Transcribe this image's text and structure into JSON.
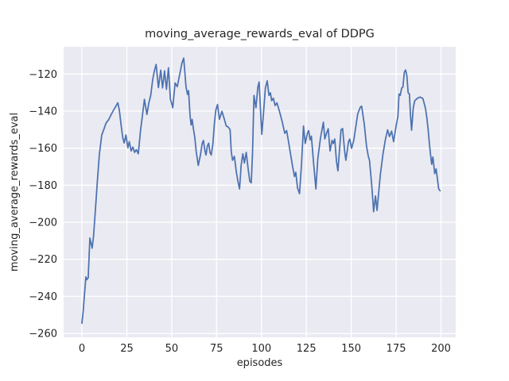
{
  "figure": {
    "title": "moving_average_rewards_eval of DDPG",
    "xlabel": "episodes",
    "ylabel": "moving_average_rewards_eval"
  },
  "chart_data": {
    "type": "line",
    "title": "moving_average_rewards_eval of DDPG",
    "xlabel": "episodes",
    "ylabel": "moving_average_rewards_eval",
    "xlim": [
      -10.2,
      208.2
    ],
    "ylim": [
      -262.1,
      -105.3
    ],
    "grid": true,
    "legend": false,
    "x_ticks": {
      "values": [
        0,
        25,
        50,
        75,
        100,
        125,
        150,
        175,
        200
      ],
      "labels": [
        "0",
        "25",
        "50",
        "75",
        "100",
        "125",
        "150",
        "175",
        "200"
      ]
    },
    "y_ticks": {
      "values": [
        -120,
        -140,
        -160,
        -180,
        -200,
        -220,
        -240,
        -260
      ],
      "labels": [
        "−120",
        "−140",
        "−160",
        "−180",
        "−200",
        "−220",
        "−240",
        "−260"
      ]
    },
    "style": {
      "plot_bg": "#EAEAF2",
      "grid_color": "#FFFFFF",
      "line_color": "#4C72B0",
      "text_color": "#262626",
      "line_width": 1.75
    },
    "series": [
      {
        "name": "moving_average_rewards_eval",
        "color": "#4C72B0",
        "points": [
          [
            0,
            -254.5
          ],
          [
            0.7,
            -248
          ],
          [
            1.5,
            -238
          ],
          [
            2.2,
            -229.5
          ],
          [
            2.7,
            -231
          ],
          [
            3.5,
            -230
          ],
          [
            4.4,
            -208.5
          ],
          [
            5.7,
            -214
          ],
          [
            6.5,
            -207
          ],
          [
            7.5,
            -193
          ],
          [
            8.6,
            -178
          ],
          [
            9.7,
            -163.5
          ],
          [
            11,
            -153
          ],
          [
            12.2,
            -149.8
          ],
          [
            13.4,
            -146.5
          ],
          [
            15,
            -144.4
          ],
          [
            16.2,
            -142
          ],
          [
            17.3,
            -140
          ],
          [
            18.6,
            -137.8
          ],
          [
            20,
            -135.5
          ],
          [
            20.9,
            -140
          ],
          [
            21.8,
            -147.3
          ],
          [
            22.7,
            -154.3
          ],
          [
            23.5,
            -157.2
          ],
          [
            24.5,
            -152.9
          ],
          [
            25.6,
            -159.8
          ],
          [
            26.4,
            -156.5
          ],
          [
            27.4,
            -161.5
          ],
          [
            28.4,
            -159.4
          ],
          [
            29.3,
            -162.3
          ],
          [
            30.3,
            -160.8
          ],
          [
            31.4,
            -163
          ],
          [
            32.7,
            -150.1
          ],
          [
            33.5,
            -144
          ],
          [
            34.8,
            -133.6
          ],
          [
            36.2,
            -141.8
          ],
          [
            37.3,
            -135.5
          ],
          [
            38.3,
            -131.5
          ],
          [
            39.4,
            -123
          ],
          [
            40.3,
            -118.5
          ],
          [
            41.3,
            -114.8
          ],
          [
            42.6,
            -127.3
          ],
          [
            43.9,
            -117.9
          ],
          [
            44.9,
            -127.5
          ],
          [
            46,
            -118.3
          ],
          [
            47.1,
            -128.2
          ],
          [
            48.2,
            -116.6
          ],
          [
            49.3,
            -133.7
          ],
          [
            50.1,
            -136.2
          ],
          [
            50.6,
            -138.2
          ],
          [
            51.9,
            -124.8
          ],
          [
            53.1,
            -126.8
          ],
          [
            54.4,
            -120.5
          ],
          [
            55.7,
            -114
          ],
          [
            56.7,
            -111.4
          ],
          [
            58,
            -127
          ],
          [
            58.8,
            -131
          ],
          [
            59.4,
            -129
          ],
          [
            60.2,
            -142
          ],
          [
            60.8,
            -147.5
          ],
          [
            61.4,
            -144.5
          ],
          [
            62.1,
            -149.5
          ],
          [
            62.9,
            -154.5
          ],
          [
            63.6,
            -161.5
          ],
          [
            64.8,
            -169.3
          ],
          [
            66,
            -163.7
          ],
          [
            67,
            -157.3
          ],
          [
            67.7,
            -155.8
          ],
          [
            68.5,
            -161.5
          ],
          [
            69.1,
            -163.7
          ],
          [
            69.9,
            -158.7
          ],
          [
            70.6,
            -157.3
          ],
          [
            71.3,
            -162.3
          ],
          [
            72,
            -163.7
          ],
          [
            72.9,
            -158
          ],
          [
            73.8,
            -146.6
          ],
          [
            74.6,
            -139.4
          ],
          [
            75.5,
            -136.4
          ],
          [
            76.6,
            -144.4
          ],
          [
            78,
            -140.1
          ],
          [
            79.2,
            -144
          ],
          [
            80.4,
            -148
          ],
          [
            81.5,
            -148.6
          ],
          [
            82.5,
            -150
          ],
          [
            83.2,
            -162
          ],
          [
            83.9,
            -166.5
          ],
          [
            84.9,
            -164.4
          ],
          [
            86,
            -173
          ],
          [
            86.9,
            -178
          ],
          [
            87.8,
            -182
          ],
          [
            88.7,
            -169.3
          ],
          [
            89.6,
            -163
          ],
          [
            90.5,
            -168
          ],
          [
            91.5,
            -162.3
          ],
          [
            92.6,
            -171.5
          ],
          [
            93.5,
            -177.9
          ],
          [
            94.3,
            -178.7
          ],
          [
            95,
            -163
          ],
          [
            95.8,
            -131.5
          ],
          [
            96.9,
            -138.2
          ],
          [
            98,
            -127
          ],
          [
            98.7,
            -124.3
          ],
          [
            99.4,
            -138
          ],
          [
            100.2,
            -152.5
          ],
          [
            101.2,
            -140
          ],
          [
            102.2,
            -127.5
          ],
          [
            103.2,
            -123.7
          ],
          [
            104.2,
            -131.5
          ],
          [
            105,
            -130.1
          ],
          [
            105.7,
            -134.4
          ],
          [
            106.6,
            -133
          ],
          [
            107.6,
            -137
          ],
          [
            108.6,
            -135.5
          ],
          [
            110,
            -140
          ],
          [
            111.5,
            -145.5
          ],
          [
            113,
            -152
          ],
          [
            114,
            -150.5
          ],
          [
            115.2,
            -157.3
          ],
          [
            116.4,
            -164.4
          ],
          [
            117.4,
            -170.1
          ],
          [
            118.4,
            -175.3
          ],
          [
            119.1,
            -173
          ],
          [
            120.1,
            -181.5
          ],
          [
            121.2,
            -184.5
          ],
          [
            122.3,
            -168.7
          ],
          [
            123.4,
            -148
          ],
          [
            124.4,
            -157.5
          ],
          [
            125.6,
            -152
          ],
          [
            126.3,
            -150.5
          ],
          [
            127.1,
            -155.5
          ],
          [
            127.8,
            -153.5
          ],
          [
            129.2,
            -170
          ],
          [
            130.3,
            -182
          ],
          [
            131.4,
            -165.8
          ],
          [
            132.9,
            -154.4
          ],
          [
            134.5,
            -146
          ],
          [
            135.3,
            -155
          ],
          [
            136.2,
            -152
          ],
          [
            137.2,
            -149.5
          ],
          [
            138.2,
            -161.5
          ],
          [
            139.3,
            -155.8
          ],
          [
            140,
            -157.5
          ],
          [
            140.8,
            -155.1
          ],
          [
            141.8,
            -167.2
          ],
          [
            142.6,
            -172.2
          ],
          [
            144.3,
            -150.1
          ],
          [
            145.2,
            -149.4
          ],
          [
            146.3,
            -161.5
          ],
          [
            147,
            -166.5
          ],
          [
            148.5,
            -156.5
          ],
          [
            149.2,
            -155.1
          ],
          [
            150.2,
            -160.1
          ],
          [
            151.4,
            -155.8
          ],
          [
            153.6,
            -141.5
          ],
          [
            155,
            -138
          ],
          [
            155.8,
            -137.3
          ],
          [
            157.3,
            -147.3
          ],
          [
            158.5,
            -158.7
          ],
          [
            159.5,
            -164.4
          ],
          [
            160.2,
            -166.5
          ],
          [
            161.4,
            -180
          ],
          [
            162.5,
            -194.3
          ],
          [
            163.5,
            -185.8
          ],
          [
            164.4,
            -193.6
          ],
          [
            166.2,
            -174.4
          ],
          [
            167.7,
            -163
          ],
          [
            169.1,
            -155.1
          ],
          [
            170.3,
            -150.1
          ],
          [
            171.3,
            -153.7
          ],
          [
            172.5,
            -150.8
          ],
          [
            173.6,
            -156.5
          ],
          [
            175.1,
            -147.3
          ],
          [
            176,
            -143
          ],
          [
            176.6,
            -130.8
          ],
          [
            177.3,
            -131.5
          ],
          [
            178.1,
            -127.5
          ],
          [
            178.8,
            -127
          ],
          [
            179.6,
            -119
          ],
          [
            180.3,
            -117.8
          ],
          [
            181,
            -121
          ],
          [
            181.7,
            -130.1
          ],
          [
            182.4,
            -130.8
          ],
          [
            183,
            -142
          ],
          [
            183.6,
            -150.3
          ],
          [
            184.6,
            -138
          ],
          [
            185.4,
            -134.4
          ],
          [
            186.9,
            -133
          ],
          [
            188.4,
            -132.4
          ],
          [
            189.9,
            -133.2
          ],
          [
            191.3,
            -138.3
          ],
          [
            192.1,
            -143.5
          ],
          [
            192.8,
            -149.4
          ],
          [
            193.6,
            -158
          ],
          [
            194.3,
            -164.4
          ],
          [
            194.8,
            -168.7
          ],
          [
            195.5,
            -164.8
          ],
          [
            196.5,
            -173.7
          ],
          [
            197.3,
            -171.2
          ],
          [
            198.7,
            -182
          ],
          [
            199.5,
            -183
          ]
        ]
      }
    ]
  }
}
